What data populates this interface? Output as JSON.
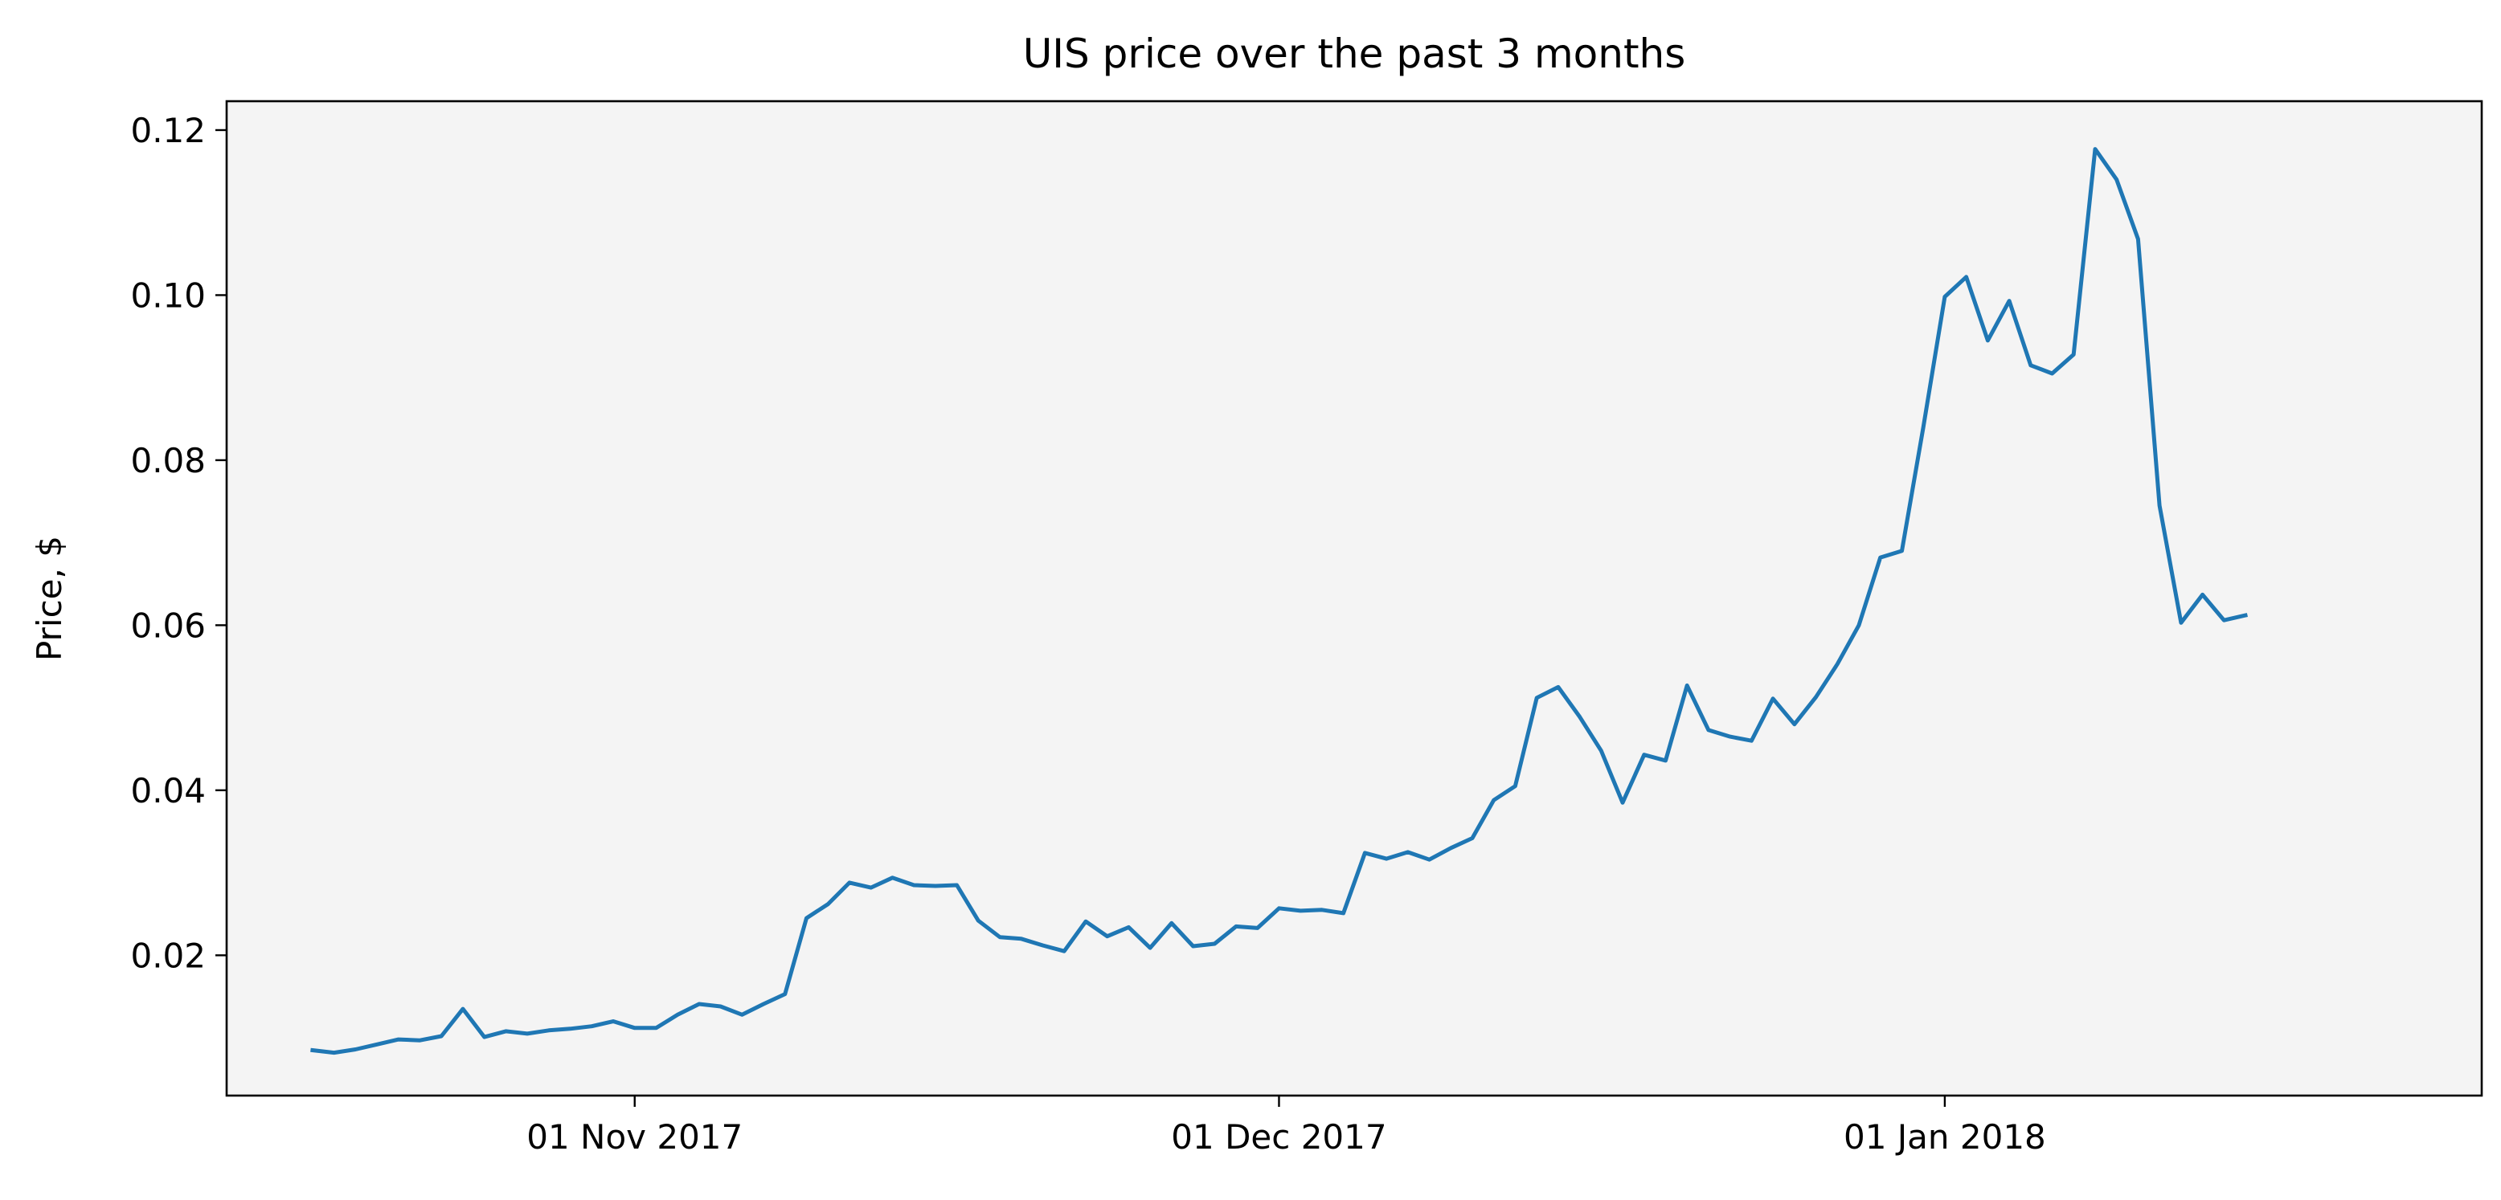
{
  "chart_data": {
    "type": "line",
    "title": "UIS price over the past 3 months",
    "xlabel": "",
    "ylabel": "Price, $",
    "x_start_date": "2017-10-17",
    "x_tick_labels": [
      {
        "label": "01 Nov 2017",
        "date": "2017-11-01"
      },
      {
        "label": "01 Dec 2017",
        "date": "2017-12-01"
      },
      {
        "label": "01 Jan 2018",
        "date": "2018-01-01"
      }
    ],
    "y_ticks": [
      0.02,
      0.04,
      0.06,
      0.08,
      0.1,
      0.12
    ],
    "y_tick_labels": [
      "0.02",
      "0.04",
      "0.06",
      "0.08",
      "0.10",
      "0.12"
    ],
    "xlim": [
      "2017-10-13",
      "2018-01-26"
    ],
    "ylim": [
      0.003,
      0.1235
    ],
    "grid": false,
    "legend": false,
    "plot_background": "#f4f4f4",
    "series": [
      {
        "color": "#1f77b4",
        "points": [
          [
            "2017-10-17",
            0.0085
          ],
          [
            "2017-10-18",
            0.0082
          ],
          [
            "2017-10-19",
            0.0086
          ],
          [
            "2017-10-20",
            0.0092
          ],
          [
            "2017-10-21",
            0.0098
          ],
          [
            "2017-10-22",
            0.0097
          ],
          [
            "2017-10-23",
            0.0102
          ],
          [
            "2017-10-24",
            0.0135
          ],
          [
            "2017-10-25",
            0.0101
          ],
          [
            "2017-10-26",
            0.0108
          ],
          [
            "2017-10-27",
            0.0105
          ],
          [
            "2017-10-28",
            0.0109
          ],
          [
            "2017-10-29",
            0.0111
          ],
          [
            "2017-10-30",
            0.0114
          ],
          [
            "2017-10-31",
            0.012
          ],
          [
            "2017-11-01",
            0.0112
          ],
          [
            "2017-11-02",
            0.0112
          ],
          [
            "2017-11-03",
            0.0128
          ],
          [
            "2017-11-04",
            0.0141
          ],
          [
            "2017-11-05",
            0.0138
          ],
          [
            "2017-11-06",
            0.0128
          ],
          [
            "2017-11-07",
            0.0141
          ],
          [
            "2017-11-08",
            0.0153
          ],
          [
            "2017-11-09",
            0.0245
          ],
          [
            "2017-11-10",
            0.0262
          ],
          [
            "2017-11-11",
            0.0288
          ],
          [
            "2017-11-12",
            0.0282
          ],
          [
            "2017-11-13",
            0.0294
          ],
          [
            "2017-11-14",
            0.0285
          ],
          [
            "2017-11-15",
            0.0284
          ],
          [
            "2017-11-16",
            0.0285
          ],
          [
            "2017-11-17",
            0.0242
          ],
          [
            "2017-11-18",
            0.0222
          ],
          [
            "2017-11-19",
            0.022
          ],
          [
            "2017-11-20",
            0.0212
          ],
          [
            "2017-11-21",
            0.0205
          ],
          [
            "2017-11-22",
            0.0241
          ],
          [
            "2017-11-23",
            0.0223
          ],
          [
            "2017-11-24",
            0.0234
          ],
          [
            "2017-11-25",
            0.0209
          ],
          [
            "2017-11-26",
            0.0239
          ],
          [
            "2017-11-27",
            0.0211
          ],
          [
            "2017-11-28",
            0.0214
          ],
          [
            "2017-11-29",
            0.0235
          ],
          [
            "2017-11-30",
            0.0233
          ],
          [
            "2017-12-01",
            0.0257
          ],
          [
            "2017-12-02",
            0.0254
          ],
          [
            "2017-12-03",
            0.0255
          ],
          [
            "2017-12-04",
            0.0251
          ],
          [
            "2017-12-05",
            0.0324
          ],
          [
            "2017-12-06",
            0.0317
          ],
          [
            "2017-12-07",
            0.0325
          ],
          [
            "2017-12-08",
            0.0316
          ],
          [
            "2017-12-09",
            0.033
          ],
          [
            "2017-12-10",
            0.0342
          ],
          [
            "2017-12-11",
            0.0388
          ],
          [
            "2017-12-12",
            0.0405
          ],
          [
            "2017-12-13",
            0.0512
          ],
          [
            "2017-12-14",
            0.0525
          ],
          [
            "2017-12-15",
            0.0489
          ],
          [
            "2017-12-16",
            0.0448
          ],
          [
            "2017-12-17",
            0.0385
          ],
          [
            "2017-12-18",
            0.0443
          ],
          [
            "2017-12-19",
            0.0436
          ],
          [
            "2017-12-20",
            0.0527
          ],
          [
            "2017-12-21",
            0.0473
          ],
          [
            "2017-12-22",
            0.0465
          ],
          [
            "2017-12-23",
            0.046
          ],
          [
            "2017-12-24",
            0.0511
          ],
          [
            "2017-12-25",
            0.048
          ],
          [
            "2017-12-26",
            0.0513
          ],
          [
            "2017-12-27",
            0.0553
          ],
          [
            "2017-12-28",
            0.06
          ],
          [
            "2017-12-29",
            0.0682
          ],
          [
            "2017-12-30",
            0.069
          ],
          [
            "2017-12-31",
            0.084
          ],
          [
            "2018-01-01",
            0.0998
          ],
          [
            "2018-01-02",
            0.1022
          ],
          [
            "2018-01-03",
            0.0945
          ],
          [
            "2018-01-04",
            0.0993
          ],
          [
            "2018-01-05",
            0.0915
          ],
          [
            "2018-01-06",
            0.0905
          ],
          [
            "2018-01-07",
            0.0928
          ],
          [
            "2018-01-08",
            0.1177
          ],
          [
            "2018-01-09",
            0.114
          ],
          [
            "2018-01-10",
            0.1068
          ],
          [
            "2018-01-11",
            0.0745
          ],
          [
            "2018-01-12",
            0.0603
          ],
          [
            "2018-01-13",
            0.0637
          ],
          [
            "2018-01-14",
            0.0606
          ],
          [
            "2018-01-15",
            0.0612
          ]
        ]
      }
    ]
  }
}
